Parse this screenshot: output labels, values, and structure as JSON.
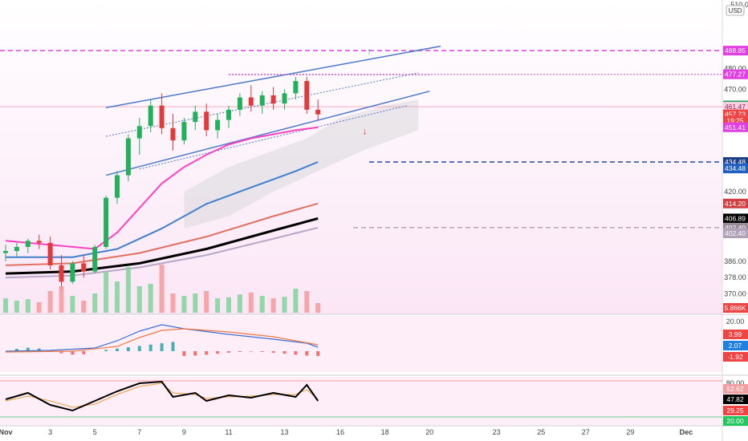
{
  "chart_data": [
    {
      "type": "candlestick",
      "title": "",
      "currency": "USD",
      "x_ticks": [
        "Nov",
        "3",
        "5",
        "7",
        "9",
        "11",
        "13",
        "16",
        "18",
        "20",
        "23",
        "25",
        "27",
        "29",
        "Dec"
      ],
      "y_ticks": [
        370.0,
        378.0,
        386.0,
        420.0,
        470.0,
        480.0,
        510.0
      ],
      "ylim": [
        364,
        512
      ],
      "candles": [
        {
          "x": 0,
          "o": 390,
          "h": 394,
          "l": 386,
          "c": 391
        },
        {
          "x": 0.5,
          "o": 391,
          "h": 395,
          "l": 388,
          "c": 393
        },
        {
          "x": 1,
          "o": 393,
          "h": 397,
          "l": 390,
          "c": 396
        },
        {
          "x": 1.5,
          "o": 396,
          "h": 399,
          "l": 392,
          "c": 395
        },
        {
          "x": 2,
          "o": 395,
          "h": 398,
          "l": 382,
          "c": 384
        },
        {
          "x": 2.5,
          "o": 384,
          "h": 389,
          "l": 372,
          "c": 376
        },
        {
          "x": 3,
          "o": 376,
          "h": 386,
          "l": 375,
          "c": 385
        },
        {
          "x": 3.5,
          "o": 385,
          "h": 389,
          "l": 378,
          "c": 381
        },
        {
          "x": 4,
          "o": 381,
          "h": 394,
          "l": 380,
          "c": 393
        },
        {
          "x": 4.5,
          "o": 393,
          "h": 418,
          "l": 392,
          "c": 417
        },
        {
          "x": 5,
          "o": 417,
          "h": 430,
          "l": 414,
          "c": 428
        },
        {
          "x": 5.5,
          "o": 428,
          "h": 448,
          "l": 425,
          "c": 446
        },
        {
          "x": 6,
          "o": 446,
          "h": 456,
          "l": 438,
          "c": 452
        },
        {
          "x": 6.5,
          "o": 452,
          "h": 465,
          "l": 449,
          "c": 462
        },
        {
          "x": 7,
          "o": 462,
          "h": 468,
          "l": 448,
          "c": 451
        },
        {
          "x": 7.5,
          "o": 451,
          "h": 458,
          "l": 440,
          "c": 445
        },
        {
          "x": 8,
          "o": 445,
          "h": 456,
          "l": 443,
          "c": 454
        },
        {
          "x": 8.5,
          "o": 454,
          "h": 462,
          "l": 450,
          "c": 459
        },
        {
          "x": 9,
          "o": 459,
          "h": 463,
          "l": 447,
          "c": 450
        },
        {
          "x": 9.5,
          "o": 450,
          "h": 458,
          "l": 446,
          "c": 455
        },
        {
          "x": 10,
          "o": 455,
          "h": 462,
          "l": 451,
          "c": 460
        },
        {
          "x": 10.5,
          "o": 460,
          "h": 468,
          "l": 457,
          "c": 466
        },
        {
          "x": 11,
          "o": 466,
          "h": 472,
          "l": 459,
          "c": 462
        },
        {
          "x": 11.5,
          "o": 462,
          "h": 469,
          "l": 458,
          "c": 467
        },
        {
          "x": 12,
          "o": 467,
          "h": 471,
          "l": 460,
          "c": 463
        },
        {
          "x": 12.5,
          "o": 463,
          "h": 470,
          "l": 460,
          "c": 468
        },
        {
          "x": 13,
          "o": 468,
          "h": 476,
          "l": 465,
          "c": 474
        },
        {
          "x": 13.5,
          "o": 474,
          "h": 476,
          "l": 458,
          "c": 460
        },
        {
          "x": 14,
          "o": 460,
          "h": 465,
          "l": 455,
          "c": 457.73
        }
      ],
      "volumes": [
        {
          "x": 0,
          "v": 0.3,
          "up": true
        },
        {
          "x": 0.5,
          "v": 0.25,
          "up": true
        },
        {
          "x": 1,
          "v": 0.28,
          "up": true
        },
        {
          "x": 1.5,
          "v": 0.22,
          "up": false
        },
        {
          "x": 2,
          "v": 0.45,
          "up": false
        },
        {
          "x": 2.5,
          "v": 0.55,
          "up": false
        },
        {
          "x": 3,
          "v": 0.35,
          "up": true
        },
        {
          "x": 3.5,
          "v": 0.25,
          "up": false
        },
        {
          "x": 4,
          "v": 0.4,
          "up": true
        },
        {
          "x": 4.5,
          "v": 0.85,
          "up": true
        },
        {
          "x": 5,
          "v": 0.65,
          "up": true
        },
        {
          "x": 5.5,
          "v": 0.95,
          "up": true
        },
        {
          "x": 6,
          "v": 0.55,
          "up": true
        },
        {
          "x": 6.5,
          "v": 0.6,
          "up": true
        },
        {
          "x": 7,
          "v": 1.0,
          "up": false
        },
        {
          "x": 7.5,
          "v": 0.4,
          "up": false
        },
        {
          "x": 8,
          "v": 0.35,
          "up": true
        },
        {
          "x": 8.5,
          "v": 0.4,
          "up": true
        },
        {
          "x": 9,
          "v": 0.45,
          "up": false
        },
        {
          "x": 9.5,
          "v": 0.3,
          "up": true
        },
        {
          "x": 10,
          "v": 0.32,
          "up": true
        },
        {
          "x": 10.5,
          "v": 0.38,
          "up": true
        },
        {
          "x": 11,
          "v": 0.42,
          "up": false
        },
        {
          "x": 11.5,
          "v": 0.35,
          "up": true
        },
        {
          "x": 12,
          "v": 0.3,
          "up": false
        },
        {
          "x": 12.5,
          "v": 0.33,
          "up": true
        },
        {
          "x": 13,
          "v": 0.5,
          "up": true
        },
        {
          "x": 13.5,
          "v": 0.45,
          "up": false
        },
        {
          "x": 14,
          "v": 0.2,
          "up": false
        }
      ],
      "moving_averages": [
        {
          "color": "#ff40c0",
          "points": [
            [
              0,
              396
            ],
            [
              2,
              394
            ],
            [
              4,
              392
            ],
            [
              5,
              400
            ],
            [
              6,
              412
            ],
            [
              7,
              424
            ],
            [
              8,
              432
            ],
            [
              9,
              438
            ],
            [
              10,
              443
            ],
            [
              11,
              446
            ],
            [
              12,
              448
            ],
            [
              13,
              450
            ],
            [
              14,
              451.41
            ]
          ]
        },
        {
          "color": "#3f7fcf",
          "points": [
            [
              0,
              388
            ],
            [
              3,
              388
            ],
            [
              5,
              392
            ],
            [
              7,
              402
            ],
            [
              9,
              414
            ],
            [
              11,
              422
            ],
            [
              13,
              430
            ],
            [
              14,
              434.48
            ]
          ]
        },
        {
          "color": "#e07060",
          "points": [
            [
              0,
              384
            ],
            [
              3,
              385
            ],
            [
              6,
              390
            ],
            [
              9,
              398
            ],
            [
              12,
              408
            ],
            [
              14,
              414.2
            ]
          ]
        },
        {
          "color": "#000000",
          "points": [
            [
              0,
              380
            ],
            [
              3,
              381
            ],
            [
              6,
              385
            ],
            [
              9,
              392
            ],
            [
              12,
              401
            ],
            [
              14,
              406.89
            ]
          ]
        },
        {
          "color": "#b8a8c8",
          "points": [
            [
              0,
              378
            ],
            [
              3,
              379
            ],
            [
              6,
              383
            ],
            [
              9,
              389
            ],
            [
              12,
              397
            ],
            [
              14,
              402.4
            ]
          ]
        }
      ],
      "horizontal_levels": [
        {
          "value": 488.85,
          "label": "488.85",
          "color": "#e040e0"
        },
        {
          "value": 477.27,
          "label": "477.27",
          "color": "#e040e0"
        },
        {
          "value": 434.48,
          "label": "434.48",
          "color": "#1e4a9a"
        },
        {
          "value": 402.4,
          "label": "402.40",
          "color": "#888888"
        }
      ],
      "price_labels": [
        {
          "label": "462.07",
          "bg": "#1e9e5a",
          "value": 462.07
        },
        {
          "label": "461.47",
          "bg": "#f8d0e0",
          "fg": "#a02050",
          "value": 461.47
        },
        {
          "label": "457.73",
          "bg": "#ef4444",
          "value": 457.73
        },
        {
          "label": "19:25",
          "bg": "#ef4444",
          "value": 454.7
        },
        {
          "label": "451.41",
          "bg": "#e040e0",
          "value": 451.41
        },
        {
          "label": "434.48",
          "bg": "#1e3f8a",
          "value": 434.48
        },
        {
          "label": "434.48",
          "bg": "#2060c0",
          "value": 431.3
        },
        {
          "label": "414.20",
          "bg": "#d04040",
          "value": 414.2
        },
        {
          "label": "406.89",
          "bg": "#000000",
          "value": 406.89
        },
        {
          "label": "402.40",
          "bg": "#9a8a9a",
          "value": 402.4
        },
        {
          "label": "402.40",
          "bg": "#b0a0b8",
          "value": 399.6
        }
      ],
      "volume_label": "5.866K"
    },
    {
      "type": "line",
      "name": "macd",
      "y_ticks": [
        20.0
      ],
      "labels": [
        {
          "label": "3.99",
          "bg": "#ef4444"
        },
        {
          "label": "2.07",
          "bg": "#2080e0"
        },
        {
          "label": "-1.92",
          "bg": "#ef4444"
        }
      ]
    },
    {
      "type": "line",
      "name": "stochastic",
      "y_ticks": [
        80.0,
        20.0
      ],
      "labels": [
        {
          "label": "52.62",
          "bg": "#f0a0a0"
        },
        {
          "label": "47.82",
          "bg": "#000000"
        },
        {
          "label": "29.25",
          "bg": "#ef4444"
        },
        {
          "label": "20.00",
          "bg": "#22c55e"
        }
      ]
    }
  ]
}
